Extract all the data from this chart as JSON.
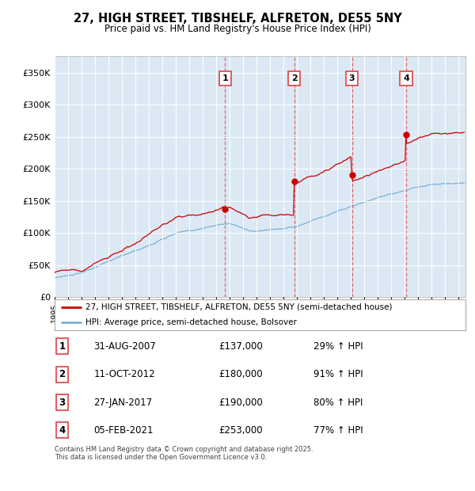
{
  "title": "27, HIGH STREET, TIBSHELF, ALFRETON, DE55 5NY",
  "subtitle": "Price paid vs. HM Land Registry's House Price Index (HPI)",
  "ylabel_ticks": [
    "£0",
    "£50K",
    "£100K",
    "£150K",
    "£200K",
    "£250K",
    "£300K",
    "£350K"
  ],
  "ytick_values": [
    0,
    50000,
    100000,
    150000,
    200000,
    250000,
    300000,
    350000
  ],
  "ylim": [
    0,
    375000
  ],
  "xlim_start": 1995.0,
  "xlim_end": 2025.5,
  "sale_dates": [
    2007.664,
    2012.777,
    2017.069,
    2021.093
  ],
  "sale_prices": [
    137000,
    180000,
    190000,
    253000
  ],
  "sale_labels": [
    "1",
    "2",
    "3",
    "4"
  ],
  "legend_property": "27, HIGH STREET, TIBSHELF, ALFRETON, DE55 5NY (semi-detached house)",
  "legend_hpi": "HPI: Average price, semi-detached house, Bolsover",
  "table_rows": [
    [
      "1",
      "31-AUG-2007",
      "£137,000",
      "29% ↑ HPI"
    ],
    [
      "2",
      "11-OCT-2012",
      "£180,000",
      "91% ↑ HPI"
    ],
    [
      "3",
      "27-JAN-2017",
      "£190,000",
      "80% ↑ HPI"
    ],
    [
      "4",
      "05-FEB-2021",
      "£253,000",
      "77% ↑ HPI"
    ]
  ],
  "footer": "Contains HM Land Registry data © Crown copyright and database right 2025.\nThis data is licensed under the Open Government Licence v3.0.",
  "property_color": "#cc0000",
  "hpi_color": "#7ab0d4",
  "bg_color": "#dce9f5",
  "vline_color": "#e05050",
  "grid_color": "#ffffff"
}
